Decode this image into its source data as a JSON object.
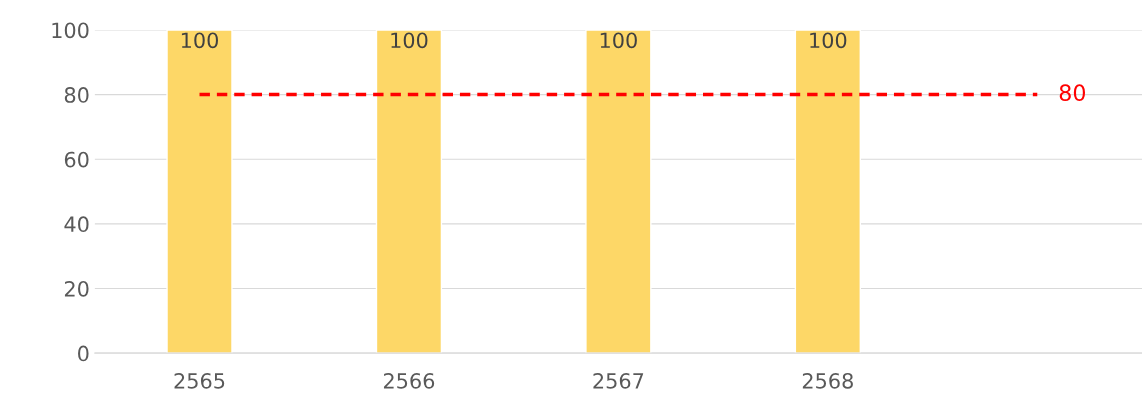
{
  "chart_data": {
    "type": "bar",
    "categories": [
      "2565",
      "2566",
      "2567",
      "2568",
      null
    ],
    "series": [
      {
        "color": "#fdd767",
        "values": [
          100,
          100,
          100,
          100,
          null
        ]
      }
    ],
    "ylim": [
      0,
      100
    ],
    "yticks": [
      0,
      20,
      40,
      60,
      80,
      100
    ],
    "grid": "y",
    "data_labels": true,
    "ref_lines": [
      {
        "axis": "y",
        "value": 80,
        "label": "80",
        "color": "#ff0000",
        "line_style": "dashed"
      }
    ]
  }
}
